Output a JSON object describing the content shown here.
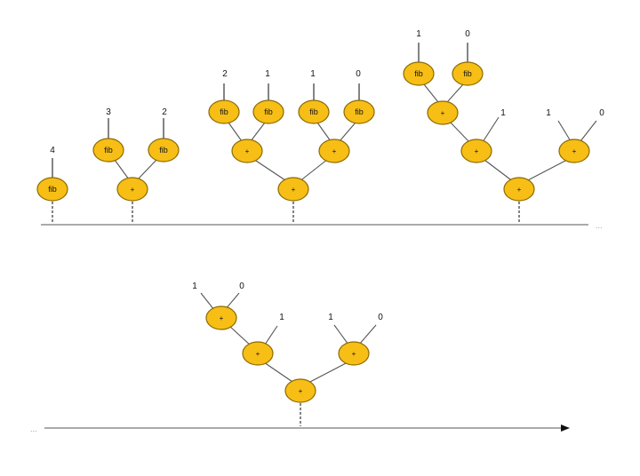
{
  "labels": {
    "fib": "fib",
    "plus": "+",
    "ellipsis": "..."
  },
  "values": {
    "v4": "4",
    "v3": "3",
    "v2": "2",
    "v1": "1",
    "v0": "0"
  },
  "colors": {
    "node_fill": "#F7BE16",
    "node_stroke": "#8B6A00",
    "line": "#555555"
  },
  "icons": {
    "arrowhead": "arrow-right-icon"
  }
}
